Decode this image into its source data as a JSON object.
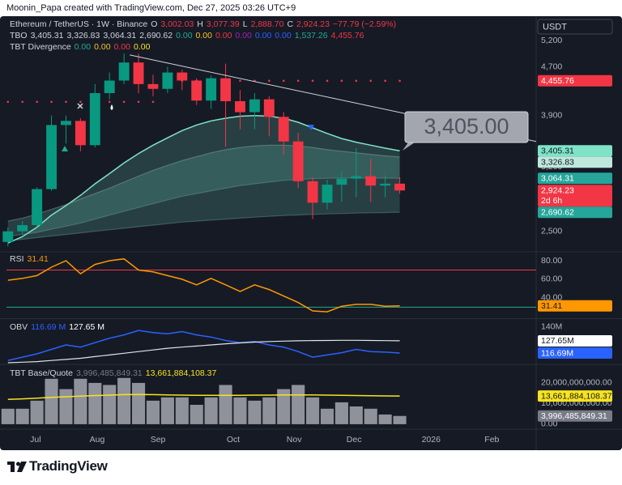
{
  "header": "Moonin_Papa created with TradingView.com, Dec 27, 2025 03:26 UTC+9",
  "footer": "TradingView",
  "chart_data": [
    {
      "type": "candlestick",
      "log": true,
      "quote": "USDT",
      "xlim": [
        -0.1,
        36.4
      ],
      "xticks": [
        {
          "value": 1.9,
          "label": "Jul"
        },
        {
          "value": 6.15,
          "label": "Aug"
        },
        {
          "value": 10.34,
          "label": "Sep"
        },
        {
          "value": 15.53,
          "label": "Oct"
        },
        {
          "value": 19.72,
          "label": "Nov"
        },
        {
          "value": 23.85,
          "label": "Dec"
        },
        {
          "value": 29.16,
          "label": "2026"
        },
        {
          "value": 33.35,
          "label": "Feb"
        }
      ],
      "ylim": [
        2318,
        5675
      ],
      "yticks": [
        {
          "value": 5200,
          "label": "5,200"
        },
        {
          "value": 4700,
          "label": "4,700"
        },
        {
          "value": 3900,
          "label": "3,900"
        },
        {
          "value": 3200,
          "label": "3,200"
        },
        {
          "value": 2500,
          "label": "2,500"
        }
      ],
      "up_color": "#089981",
      "down_color": "#f23645",
      "open": [
        2400,
        2500,
        2560,
        2940,
        3760,
        3820,
        3480,
        4250,
        4460,
        4780,
        4400,
        4320,
        4600,
        4460,
        4130,
        4500,
        4120,
        3950,
        4150,
        3880,
        3530,
        3030,
        2790,
        2990,
        3060,
        3090,
        2980,
        3002.03
      ],
      "high": [
        2540,
        2600,
        2960,
        3900,
        3900,
        3860,
        4400,
        4600,
        4950,
        4950,
        4560,
        4700,
        4650,
        4500,
        4550,
        4760,
        4300,
        4250,
        4200,
        3950,
        3650,
        3080,
        3050,
        3150,
        3440,
        3300,
        3100,
        3077.39
      ],
      "low": [
        2360,
        2470,
        2540,
        2920,
        3500,
        3400,
        3450,
        4150,
        4400,
        4250,
        4200,
        4250,
        4300,
        4060,
        4000,
        3460,
        3700,
        3700,
        3600,
        3350,
        2950,
        2620,
        2720,
        2800,
        2850,
        2800,
        2850,
        2888.7
      ],
      "close": [
        2500,
        2560,
        2940,
        3760,
        3820,
        3480,
        4250,
        4460,
        4780,
        4400,
        4320,
        4600,
        4460,
        4130,
        4500,
        4120,
        3950,
        4150,
        3880,
        3530,
        3030,
        2790,
        2990,
        3060,
        3090,
        2980,
        3002.03,
        2924.23
      ],
      "fill_color": "rgba(110,215,190,0.20)",
      "series": [
        {
          "color": "#7fe3c8",
          "values": [
            2390,
            2450,
            2540,
            2660,
            2760,
            2870,
            3000,
            3120,
            3250,
            3370,
            3480,
            3580,
            3680,
            3760,
            3820,
            3860,
            3890,
            3900,
            3890,
            3860,
            3800,
            3720,
            3640,
            3570,
            3520,
            3480,
            3440,
            3405.31
          ]
        },
        {
          "color": "rgba(160,200,190,0.35)",
          "values": [
            2600,
            2630,
            2670,
            2720,
            2770,
            2830,
            2890,
            2950,
            3020,
            3090,
            3160,
            3220,
            3280,
            3330,
            3380,
            3420,
            3450,
            3470,
            3480,
            3480,
            3470,
            3450,
            3420,
            3400,
            3380,
            3360,
            3340,
            3326.83
          ]
        },
        {
          "color": "rgba(120,180,170,0.35)",
          "values": [
            2450,
            2470,
            2490,
            2520,
            2550,
            2580,
            2620,
            2660,
            2700,
            2740,
            2780,
            2820,
            2860,
            2890,
            2920,
            2950,
            2980,
            3000,
            3020,
            3040,
            3050,
            3060,
            3065,
            3068,
            3068,
            3067,
            3066,
            3064.31
          ]
        },
        {
          "color": "rgba(120,180,170,0.35)",
          "values": [
            2410,
            2425,
            2440,
            2455,
            2470,
            2485,
            2500,
            2515,
            2530,
            2545,
            2560,
            2575,
            2590,
            2600,
            2610,
            2620,
            2630,
            2640,
            2648,
            2656,
            2662,
            2668,
            2673,
            2677,
            2681,
            2684,
            2687,
            2690.62
          ]
        }
      ],
      "dots": {
        "color": "#f23645",
        "values": [
          4110,
          4110,
          4110,
          4110,
          4110,
          4110,
          4110,
          4110,
          4110,
          4110,
          4110,
          4455.76,
          4455.76,
          4455.76,
          4455.76,
          4455.76,
          4455.76,
          4455.76,
          4455.76,
          4455.76,
          4455.76,
          4455.76,
          4455.76,
          4455.76,
          4455.76,
          4455.76,
          4455.76,
          4455.76
        ]
      },
      "trendline": {
        "color": "#d1d4dc",
        "x": [
          8.4,
          36.4
        ],
        "y": [
          4920,
          3530
        ]
      },
      "annotation": "3,405.00",
      "price_labels": [
        {
          "value": 4455.76,
          "label": "4,455.76",
          "color": "#f23645",
          "text_color": "#ffffff"
        },
        {
          "value": 3405.31,
          "label": "3,405.31",
          "color": "#7fe3c8",
          "text_color": "#131722"
        },
        {
          "value": 3326.83,
          "label": "3,326.83",
          "color": "#bfe8dc",
          "text_color": "#131722"
        },
        {
          "value": 3064.31,
          "label": "3,064.31",
          "color": "#26a69a",
          "text_color": "#ffffff"
        },
        {
          "value": 2924.23,
          "label": "2,924.23",
          "sub": "2d 6h",
          "color": "#f23645",
          "text_color": "#ffffff"
        },
        {
          "value": 2690.62,
          "label": "2,690.62",
          "color": "#26a69a",
          "text_color": "#ffffff"
        }
      ],
      "legend": [
        [
          {
            "text": "Ethereum / TetherUS · 1W · Binance",
            "color": "#d1d4dc"
          },
          {
            "text": "O",
            "color": "#d1d4dc"
          },
          {
            "text": "3,002.03",
            "color": "#f23645"
          },
          {
            "text": "H",
            "color": "#d1d4dc"
          },
          {
            "text": "3,077.39",
            "color": "#f23645"
          },
          {
            "text": "L",
            "color": "#d1d4dc"
          },
          {
            "text": "2,888.70",
            "color": "#f23645"
          },
          {
            "text": "C",
            "color": "#d1d4dc"
          },
          {
            "text": "2,924.23",
            "color": "#f23645"
          },
          {
            "text": "−77.79 (−2.59%)",
            "color": "#f23645"
          }
        ],
        [
          {
            "text": "TBO",
            "color": "#d1d4dc"
          },
          {
            "text": "3,405.31",
            "color": "#d1d4dc"
          },
          {
            "text": "3,326.83",
            "color": "#d1d4dc"
          },
          {
            "text": "3,064.31",
            "color": "#d1d4dc"
          },
          {
            "text": "2,690.62",
            "color": "#d1d4dc"
          },
          {
            "text": "0.00",
            "color": "#22ab94"
          },
          {
            "text": "0.00",
            "color": "#f7c41f"
          },
          {
            "text": "0.00",
            "color": "#f23645"
          },
          {
            "text": "0.00",
            "color": "#9c27b0"
          },
          {
            "text": "0.00",
            "color": "#2962ff"
          },
          {
            "text": "0.00",
            "color": "#2962ff"
          },
          {
            "text": "1,537.26",
            "color": "#22ab94"
          },
          {
            "text": "4,455.76",
            "color": "#f23645"
          }
        ],
        [
          {
            "text": "TBT Divergence",
            "color": "#d1d4dc"
          },
          {
            "text": "0.00",
            "color": "#22ab94"
          },
          {
            "text": "0.00",
            "color": "#f7c41f"
          },
          {
            "text": "0.00",
            "color": "#f23645"
          },
          {
            "text": "0.00",
            "color": "#f7e41f"
          }
        ]
      ]
    },
    {
      "type": "line",
      "ylim": [
        19,
        88.7
      ],
      "yticks": [
        {
          "value": 80,
          "label": "80.00"
        },
        {
          "value": 60,
          "label": "60.00"
        },
        {
          "value": 40,
          "label": "40.00"
        }
      ],
      "hlines": [
        {
          "value": 70,
          "color": "#f23645"
        },
        {
          "value": 30,
          "color": "#22ab94"
        }
      ],
      "series": [
        {
          "color": "#ff9800",
          "values": [
            59,
            61,
            64,
            73,
            80,
            66,
            76,
            80,
            82,
            70,
            68,
            64,
            60,
            54,
            61,
            54,
            47,
            54,
            49,
            42,
            35,
            26,
            25,
            31,
            33,
            33,
            31,
            31.41
          ]
        }
      ],
      "price_labels": [
        {
          "value": 31.41,
          "label": "31.41",
          "color": "#ff9800",
          "text_color": "#131722"
        }
      ],
      "legend": [
        [
          {
            "text": "RSI",
            "color": "#d1d4dc"
          },
          {
            "text": "31.41",
            "color": "#ff9800"
          }
        ]
      ]
    },
    {
      "type": "line",
      "ylim": [
        108000000,
        146500000
      ],
      "yticks": [
        {
          "value": 140000000,
          "label": "140M"
        }
      ],
      "series": [
        {
          "color": "#2962ff",
          "values": [
            110000000,
            113000000,
            116000000,
            120000000,
            124000000,
            122000000,
            126000000,
            130000000,
            133000000,
            137000000,
            135000000,
            134000000,
            136000000,
            133000000,
            131000000,
            128000000,
            126000000,
            127000000,
            124000000,
            122000000,
            118000000,
            113000000,
            115000000,
            117000000,
            120000000,
            118000000,
            117500000,
            116690000
          ]
        },
        {
          "color": "#e0e3eb",
          "values": [
            108000000,
            108500000,
            109000000,
            110000000,
            111000000,
            112000000,
            113500000,
            115000000,
            116500000,
            118000000,
            119500000,
            121000000,
            122000000,
            123000000,
            124000000,
            125000000,
            125800000,
            126500000,
            127000000,
            127400000,
            127700000,
            127900000,
            128000000,
            128100000,
            128100000,
            128000000,
            127800000,
            127650000
          ]
        }
      ],
      "price_labels": [
        {
          "value": 127650000,
          "label": "127.65M",
          "color": "#ffffff",
          "text_color": "#131722"
        },
        {
          "value": 116690000,
          "label": "116.69M",
          "color": "#2962ff",
          "text_color": "#ffffff"
        }
      ],
      "legend": [
        [
          {
            "text": "OBV",
            "color": "#d1d4dc"
          },
          {
            "text": "116.69 M",
            "color": "#2962ff"
          },
          {
            "text": "127.65 M",
            "color": "#ffffff"
          }
        ]
      ]
    },
    {
      "type": "bar",
      "ylim": [
        -1600000000,
        28200000000
      ],
      "yticks": [
        {
          "value": 20000000000,
          "label": "20,000,000,000.00"
        },
        {
          "value": 10000000000,
          "label": "10,000,000,000.00"
        },
        {
          "value": 0,
          "label": "0.00"
        }
      ],
      "color": "#8f929b",
      "values": [
        7500000000,
        7500000000,
        11400000000,
        22000000000,
        17000000000,
        22000000000,
        20000000000,
        19000000000,
        22400000000,
        20000000000,
        11400000000,
        13000000000,
        13000000000,
        9400000000,
        13000000000,
        19000000000,
        13000000000,
        11400000000,
        13000000000,
        17000000000,
        19000000000,
        13000000000,
        7500000000,
        10600000000,
        8600000000,
        7500000000,
        4700000000,
        3996485849.31
      ],
      "series": [
        {
          "color": "#f7e41f",
          "values": [
            12000000000,
            12300000000,
            12600000000,
            13000000000,
            13300000000,
            13600000000,
            13900000000,
            14100000000,
            14300000000,
            14400000000,
            14300000000,
            14200000000,
            14100000000,
            14000000000,
            14000000000,
            14000000000,
            14000000000,
            14100000000,
            14100000000,
            14200000000,
            14200000000,
            14200000000,
            14100000000,
            14000000000,
            13900000000,
            13800000000,
            13700000000,
            13661884108.37
          ]
        }
      ],
      "price_labels": [
        {
          "value": 13661884108.37,
          "label": "13,661,884,108.37",
          "color": "#f7e41f",
          "text_color": "#131722"
        },
        {
          "value": 3996485849.31,
          "label": "3,996,485,849.31",
          "color": "#787b86",
          "text_color": "#ffffff"
        }
      ],
      "legend": [
        [
          {
            "text": "TBT Base/Quote",
            "color": "#d1d4dc"
          },
          {
            "text": "3,996,485,849.31",
            "color": "#787b86"
          },
          {
            "text": "13,661,884,108.37",
            "color": "#f7e41f"
          }
        ]
      ]
    }
  ]
}
